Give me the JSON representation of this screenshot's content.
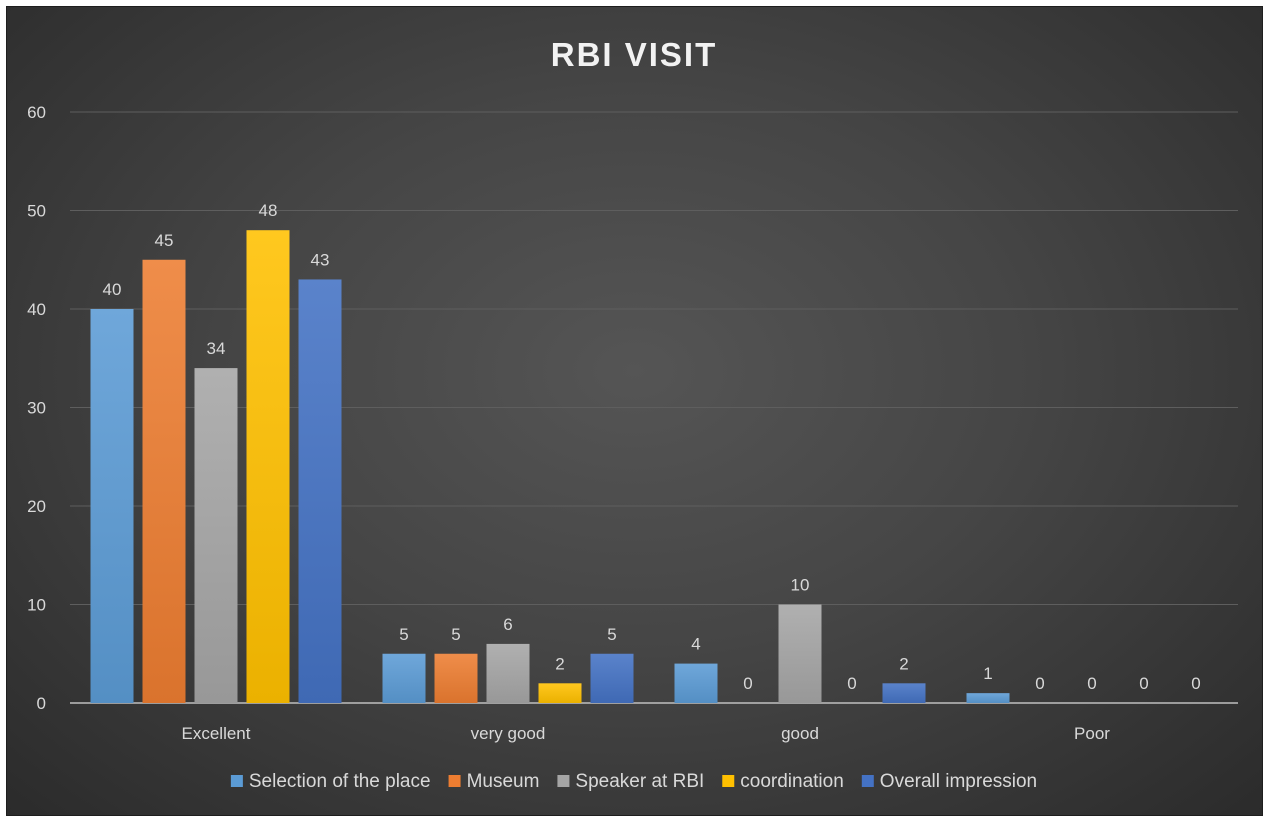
{
  "chart_data": {
    "type": "bar",
    "title": "RBI VISIT",
    "categories": [
      "Excellent",
      "very good",
      "good",
      "Poor"
    ],
    "series": [
      {
        "name": "Selection of the place",
        "values": [
          40,
          5,
          4,
          1
        ],
        "color": "#5b9bd5"
      },
      {
        "name": "Museum",
        "values": [
          45,
          5,
          0,
          0
        ],
        "color": "#ed7d31"
      },
      {
        "name": "Speaker at RBI",
        "values": [
          34,
          6,
          10,
          0
        ],
        "color": "#a5a5a5"
      },
      {
        "name": "coordination",
        "values": [
          48,
          2,
          0,
          0
        ],
        "color": "#ffc000"
      },
      {
        "name": "Overall impression",
        "values": [
          43,
          5,
          2,
          0
        ],
        "color": "#4472c4"
      }
    ],
    "yticks": [
      0,
      10,
      20,
      30,
      40,
      50,
      60
    ],
    "ylim": [
      0,
      60
    ],
    "grid": true,
    "legend": "bottom",
    "data_labels": true
  }
}
